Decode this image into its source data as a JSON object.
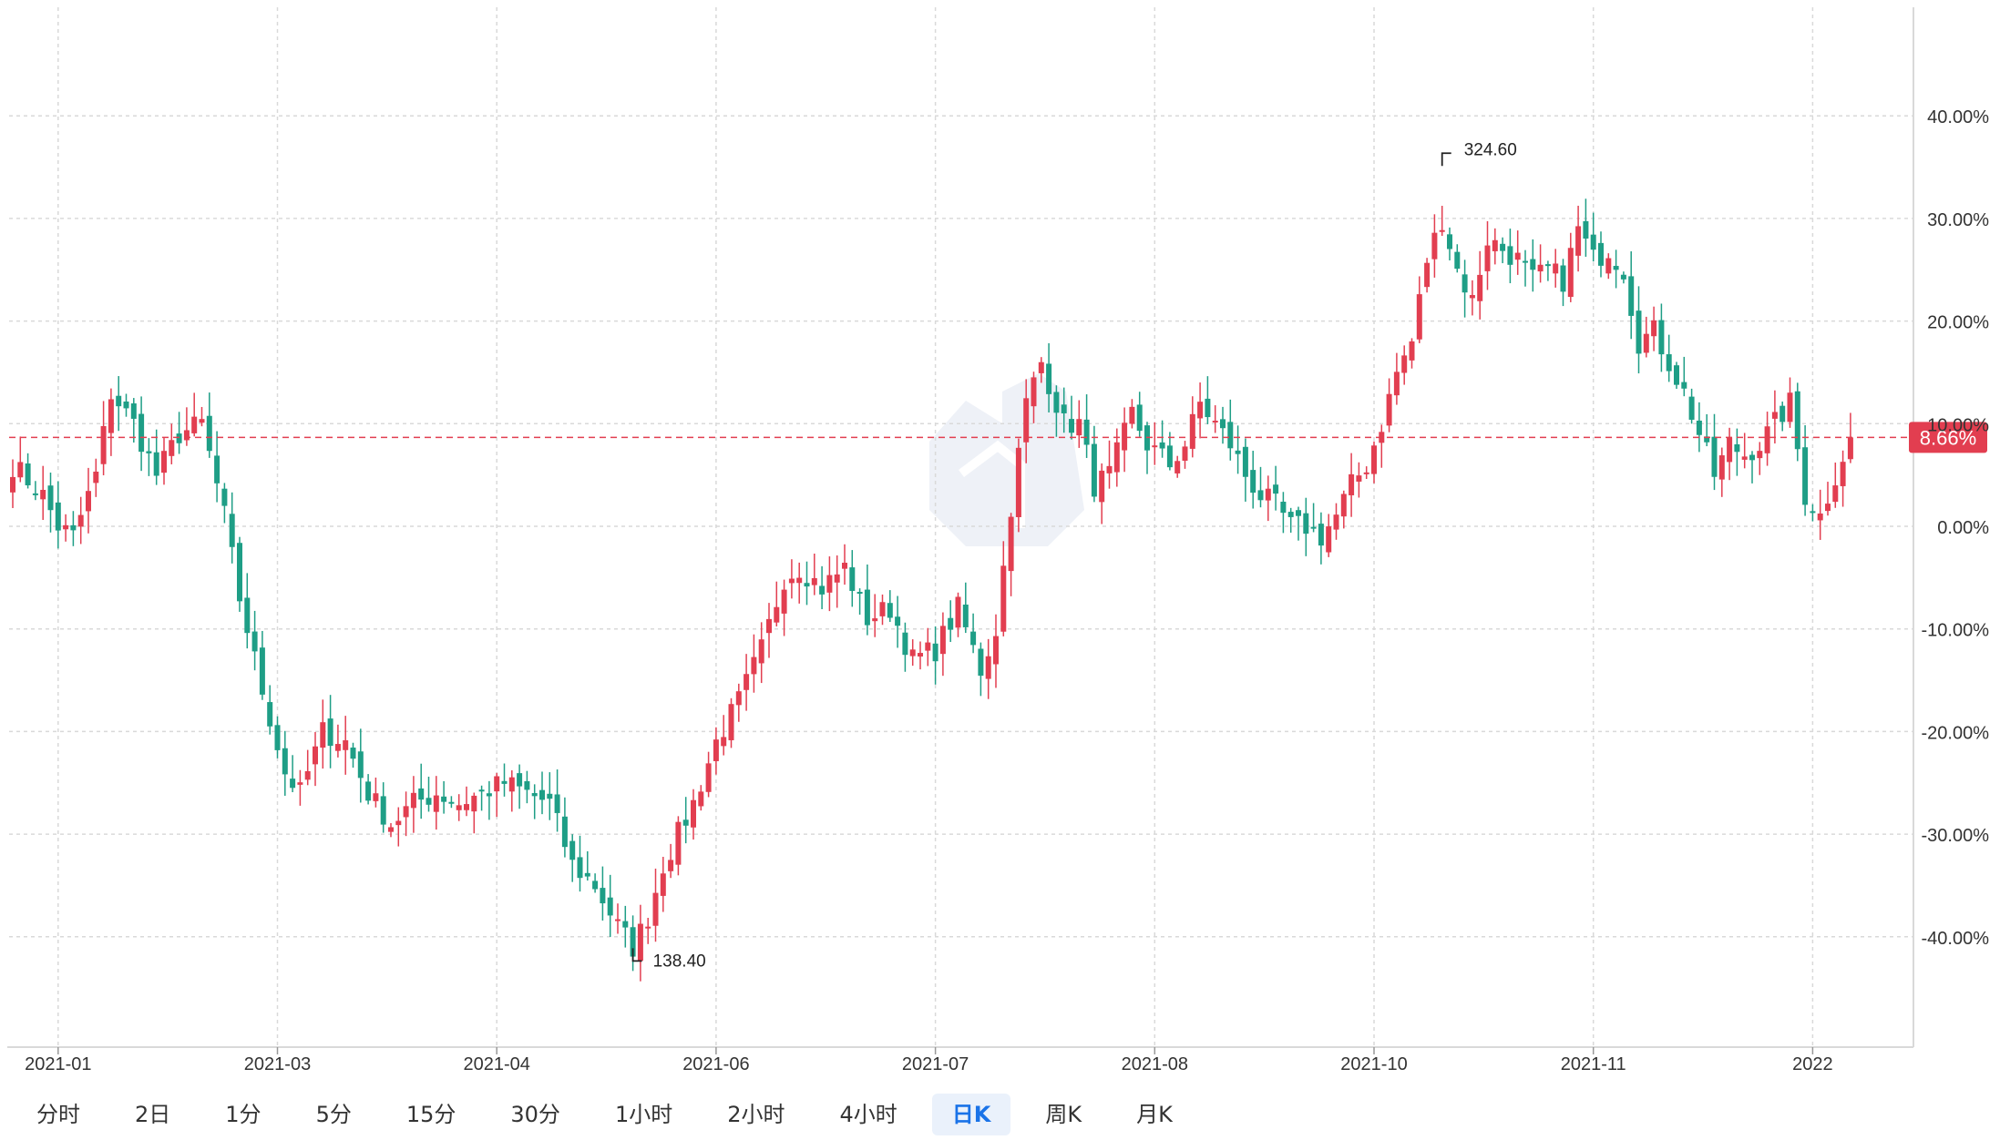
{
  "chart_data": {
    "type": "candlestick",
    "title": "",
    "y_axis": {
      "format": "percent",
      "ticks": [
        "40.00%",
        "30.00%",
        "20.00%",
        "10.00%",
        "0.00%",
        "-10.00%",
        "-20.00%",
        "-30.00%",
        "-40.00%"
      ],
      "tick_values": [
        40,
        30,
        20,
        10,
        0,
        -10,
        -20,
        -30,
        -40
      ],
      "range": [
        -50.5,
        51.3
      ]
    },
    "x_axis": {
      "ticks": [
        "2021-01",
        "2021-03",
        "2021-04",
        "2021-06",
        "2021-07",
        "2021-08",
        "2021-10",
        "2021-11",
        "2022"
      ],
      "tick_index": [
        6,
        35,
        64,
        93,
        122,
        151,
        180,
        209,
        238
      ],
      "range": [
        0,
        244
      ]
    },
    "current_value": {
      "label": "8.66%",
      "value": 8.66
    },
    "max_annotation": {
      "label": "324.60",
      "index": 189,
      "value": 36.0
    },
    "min_annotation": {
      "label": "138.40",
      "index": 82,
      "value": -42.0
    },
    "grid": true,
    "colors": {
      "up": "#e23e50",
      "down": "#1e9e86",
      "grid": "#d9d9d9",
      "current": "#e23e50",
      "watermark": "#eef1f7"
    },
    "anchors": [
      [
        0,
        6
      ],
      [
        4,
        3
      ],
      [
        6,
        0
      ],
      [
        8,
        -1
      ],
      [
        11,
        5
      ],
      [
        13,
        13
      ],
      [
        16,
        10
      ],
      [
        19,
        5
      ],
      [
        22,
        9
      ],
      [
        25,
        10
      ],
      [
        28,
        1
      ],
      [
        30,
        -7
      ],
      [
        33,
        -16
      ],
      [
        36,
        -24
      ],
      [
        38,
        -26
      ],
      [
        41,
        -20
      ],
      [
        44,
        -21
      ],
      [
        47,
        -26
      ],
      [
        50,
        -29
      ],
      [
        53,
        -27
      ],
      [
        56,
        -26
      ],
      [
        59,
        -27
      ],
      [
        62,
        -26
      ],
      [
        65,
        -25
      ],
      [
        68,
        -26
      ],
      [
        71,
        -27
      ],
      [
        74,
        -33
      ],
      [
        77,
        -35
      ],
      [
        80,
        -39
      ],
      [
        82,
        -41
      ],
      [
        84,
        -38
      ],
      [
        86,
        -33
      ],
      [
        88,
        -30
      ],
      [
        90,
        -27
      ],
      [
        93,
        -21
      ],
      [
        96,
        -17
      ],
      [
        99,
        -12
      ],
      [
        102,
        -5
      ],
      [
        104,
        -4
      ],
      [
        107,
        -6
      ],
      [
        110,
        -4
      ],
      [
        113,
        -9
      ],
      [
        116,
        -8
      ],
      [
        119,
        -13
      ],
      [
        122,
        -12
      ],
      [
        125,
        -8
      ],
      [
        128,
        -14
      ],
      [
        130,
        -10
      ],
      [
        132,
        2
      ],
      [
        134,
        12
      ],
      [
        136,
        16
      ],
      [
        139,
        10
      ],
      [
        141,
        10
      ],
      [
        143,
        4
      ],
      [
        145,
        5
      ],
      [
        148,
        11
      ],
      [
        150,
        8
      ],
      [
        153,
        6
      ],
      [
        155,
        8
      ],
      [
        157,
        12
      ],
      [
        159,
        10
      ],
      [
        161,
        8
      ],
      [
        163,
        5
      ],
      [
        165,
        3
      ],
      [
        167,
        2
      ],
      [
        169,
        0
      ],
      [
        171,
        0
      ],
      [
        173,
        -1
      ],
      [
        175,
        1
      ],
      [
        177,
        4
      ],
      [
        179,
        6
      ],
      [
        181,
        10
      ],
      [
        183,
        15
      ],
      [
        185,
        18
      ],
      [
        187,
        26
      ],
      [
        189,
        30
      ],
      [
        191,
        25
      ],
      [
        193,
        22
      ],
      [
        195,
        28
      ],
      [
        197,
        27
      ],
      [
        199,
        26
      ],
      [
        201,
        24
      ],
      [
        203,
        25
      ],
      [
        205,
        24
      ],
      [
        207,
        29
      ],
      [
        209,
        26
      ],
      [
        211,
        27
      ],
      [
        213,
        25
      ],
      [
        215,
        18
      ],
      [
        217,
        19
      ],
      [
        219,
        16
      ],
      [
        221,
        13
      ],
      [
        223,
        9
      ],
      [
        225,
        5
      ],
      [
        227,
        8
      ],
      [
        229,
        7
      ],
      [
        231,
        8
      ],
      [
        233,
        10
      ],
      [
        235,
        12
      ],
      [
        237,
        3
      ],
      [
        239,
        1
      ],
      [
        241,
        5
      ],
      [
        243,
        8.66
      ]
    ]
  },
  "watermark": {
    "icon": "logo-watermark-icon"
  },
  "tabs": [
    {
      "label": "分时",
      "active": false
    },
    {
      "label": "2日",
      "active": false
    },
    {
      "label": "1分",
      "active": false
    },
    {
      "label": "5分",
      "active": false
    },
    {
      "label": "15分",
      "active": false
    },
    {
      "label": "30分",
      "active": false
    },
    {
      "label": "1小时",
      "active": false
    },
    {
      "label": "2小时",
      "active": false
    },
    {
      "label": "4小时",
      "active": false
    },
    {
      "label": "日K",
      "active": true
    },
    {
      "label": "周K",
      "active": false
    },
    {
      "label": "月K",
      "active": false
    }
  ]
}
